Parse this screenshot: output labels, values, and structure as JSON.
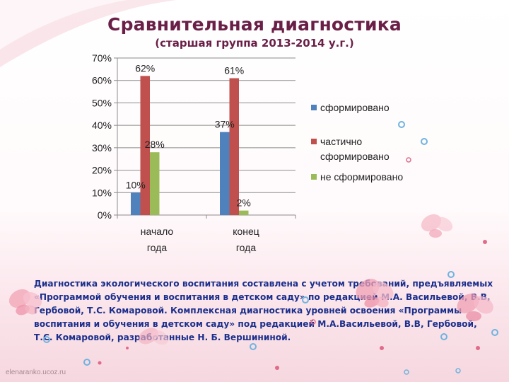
{
  "slide": {
    "title": "Сравнительная диагностика",
    "subtitle": "(старшая группа 2013-2014 у.г.)",
    "description": "Диагностика экологического воспитания составлена с учетом требований, предъявляемых «Программой обучения и воспитания в детском саду» по редакцией М.А. Васильевой, В.В, Гербовой, Т.С. Комаровой. Комплексная диагностика уровней освоения «Программы воспитания и обучения в детском саду» под редакцией М.А.Васильевой, В.В, Гербовой, Т.С. Комаровой, разработанные Н. Б. Вершининой.",
    "watermark": "elenaranko.ucoz.ru"
  },
  "chart_data": {
    "type": "bar",
    "title": "Сравнительная диагностика",
    "subtitle": "(старшая группа 2013-2014 у.г.)",
    "categories": [
      "начало года",
      "конец года"
    ],
    "category_lines": [
      [
        "начало",
        "года"
      ],
      [
        "конец",
        "года"
      ]
    ],
    "series": [
      {
        "name": "сформировано",
        "values": [
          10,
          37
        ],
        "labels": [
          "10%",
          "37%"
        ],
        "color": "#4f81bd"
      },
      {
        "name": "частично сформировано",
        "values": [
          62,
          61
        ],
        "labels": [
          "62%",
          "61%"
        ],
        "color": "#c0504d"
      },
      {
        "name": "не сформировано",
        "values": [
          28,
          2
        ],
        "labels": [
          "28%",
          "2%"
        ],
        "color": "#9bbb59"
      }
    ],
    "legend_lines": [
      [
        "сформировано"
      ],
      [
        "частично",
        "сформировано"
      ],
      [
        "не сформировано"
      ]
    ],
    "yticks": [
      "0%",
      "10%",
      "20%",
      "30%",
      "40%",
      "50%",
      "60%",
      "70%"
    ],
    "ylim": [
      0,
      70
    ],
    "ystep": 10,
    "grid": true,
    "legend_position": "right"
  }
}
